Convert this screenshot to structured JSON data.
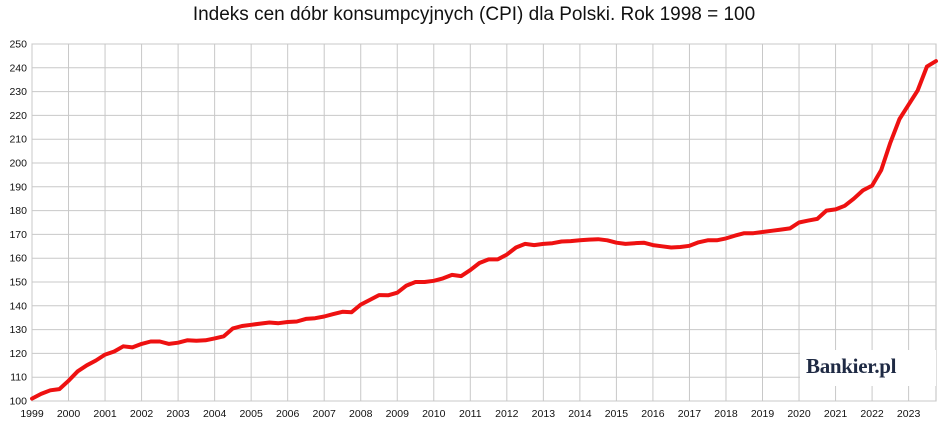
{
  "chart_data": {
    "type": "line",
    "title": "Indeks cen dóbr konsumpcyjnych (CPI) dla Polski. Rok 1998 = 100",
    "xlabel": "",
    "ylabel": "",
    "ylim": [
      100,
      250
    ],
    "xlim": [
      1999,
      2023.75
    ],
    "yticks": [
      "100",
      "110",
      "120",
      "130",
      "140",
      "150",
      "160",
      "170",
      "180",
      "190",
      "200",
      "210",
      "220",
      "230",
      "240",
      "250"
    ],
    "xticks": [
      "1999",
      "2000",
      "2001",
      "2002",
      "2003",
      "2004",
      "2005",
      "2006",
      "2007",
      "2008",
      "2009",
      "2010",
      "2011",
      "2012",
      "2013",
      "2014",
      "2015",
      "2016",
      "2017",
      "2018",
      "2019",
      "2020",
      "2021",
      "2022",
      "2023"
    ],
    "grid": true,
    "series": [
      {
        "color": "#ee1111",
        "x": [
          1999.0,
          1999.25,
          1999.5,
          1999.75,
          2000.0,
          2000.25,
          2000.5,
          2000.75,
          2001.0,
          2001.25,
          2001.5,
          2001.75,
          2002.0,
          2002.25,
          2002.5,
          2002.75,
          2003.0,
          2003.25,
          2003.5,
          2003.75,
          2004.0,
          2004.25,
          2004.5,
          2004.75,
          2005.0,
          2005.25,
          2005.5,
          2005.75,
          2006.0,
          2006.25,
          2006.5,
          2006.75,
          2007.0,
          2007.25,
          2007.5,
          2007.75,
          2008.0,
          2008.25,
          2008.5,
          2008.75,
          2009.0,
          2009.25,
          2009.5,
          2009.75,
          2010.0,
          2010.25,
          2010.5,
          2010.75,
          2011.0,
          2011.25,
          2011.5,
          2011.75,
          2012.0,
          2012.25,
          2012.5,
          2012.75,
          2013.0,
          2013.25,
          2013.5,
          2013.75,
          2014.0,
          2014.25,
          2014.5,
          2014.75,
          2015.0,
          2015.25,
          2015.5,
          2015.75,
          2016.0,
          2016.25,
          2016.5,
          2016.75,
          2017.0,
          2017.25,
          2017.5,
          2017.75,
          2018.0,
          2018.25,
          2018.5,
          2018.75,
          2019.0,
          2019.25,
          2019.5,
          2019.75,
          2020.0,
          2020.25,
          2020.5,
          2020.75,
          2021.0,
          2021.25,
          2021.5,
          2021.75,
          2022.0,
          2022.25,
          2022.5,
          2022.75,
          2023.0,
          2023.25,
          2023.5,
          2023.75
        ],
        "y": [
          101,
          103,
          104.5,
          105,
          108.5,
          112.5,
          115,
          117,
          119.5,
          120.8,
          123,
          122.5,
          124,
          125,
          125,
          124,
          124.5,
          125.5,
          125.3,
          125.5,
          126.3,
          127.2,
          130.5,
          131.5,
          132,
          132.5,
          133,
          132.7,
          133.2,
          133.4,
          134.5,
          134.8,
          135.5,
          136.5,
          137.5,
          137.3,
          140.5,
          142.5,
          144.5,
          144.4,
          145.5,
          148.5,
          150,
          150,
          150.5,
          151.5,
          153,
          152.5,
          155,
          158,
          159.5,
          159.5,
          161.5,
          164.5,
          166,
          165.5,
          166,
          166.3,
          167,
          167.2,
          167.5,
          167.8,
          168,
          167.5,
          166.5,
          166,
          166.3,
          166.5,
          165.5,
          165,
          164.5,
          164.7,
          165.2,
          166.7,
          167.5,
          167.5,
          168.3,
          169.5,
          170.5,
          170.5,
          171,
          171.5,
          172,
          172.5,
          175,
          175.8,
          176.5,
          180,
          180.5,
          182,
          185,
          188.5,
          190.5,
          197,
          208.5,
          218.5,
          224.5,
          230.5,
          240.5,
          242.8
        ]
      }
    ]
  },
  "logo": {
    "text": "Bankier.pl"
  }
}
